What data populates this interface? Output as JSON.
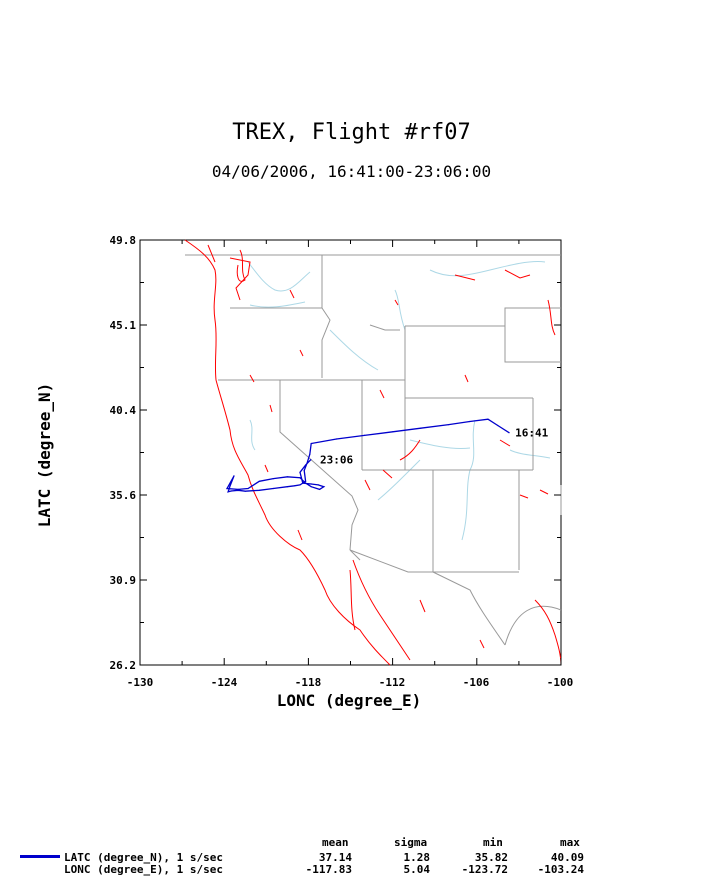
{
  "title": "TREX, Flight #rf07",
  "subtitle": "04/06/2006, 16:41:00-23:06:00",
  "chart_data": {
    "type": "line",
    "xlabel": "LONC (degree_E)",
    "ylabel": "LATC (degree_N)",
    "xlim": [
      -130,
      -100
    ],
    "ylim": [
      26.2,
      49.8
    ],
    "xticks": [
      "-130",
      "-124",
      "-118",
      "-112",
      "-106",
      "-100"
    ],
    "yticks": [
      "49.8",
      "45.1",
      "40.4",
      "35.6",
      "30.9",
      "26.2"
    ],
    "series": [
      {
        "name": "LATC (degree_N), 1 s/sec",
        "color": "#0000cc",
        "x": [
          -103.7,
          -104.5,
          -105.2,
          -106.5,
          -108.0,
          -110.0,
          -112.0,
          -114.0,
          -116.0,
          -117.8,
          -117.9,
          -118.1,
          -118.3,
          -118.2,
          -118.6,
          -119.0,
          -119.5,
          -120.5,
          -121.5,
          -122.5,
          -123.0,
          -123.5,
          -123.72,
          -123.6,
          -123.3,
          -123.8,
          -123.0,
          -122.3,
          -121.5,
          -120.5,
          -119.5,
          -118.6,
          -118.2,
          -117.8,
          -117.2,
          -116.9,
          -117.3,
          -117.8,
          -118.4,
          -118.6,
          -118.2,
          -117.83
        ],
        "y": [
          39.1,
          39.5,
          39.85,
          39.72,
          39.55,
          39.35,
          39.15,
          38.95,
          38.75,
          38.5,
          37.9,
          37.4,
          37.0,
          36.4,
          36.2,
          36.15,
          36.1,
          36.0,
          35.9,
          35.85,
          35.9,
          35.86,
          35.82,
          36.1,
          36.7,
          36.0,
          35.95,
          36.0,
          36.4,
          36.55,
          36.65,
          36.6,
          36.3,
          36.1,
          35.95,
          36.1,
          36.2,
          36.25,
          36.3,
          36.9,
          37.3,
          37.6
        ]
      }
    ],
    "annotations": [
      {
        "text": "16:41",
        "x": -103.7,
        "y": 39.1
      },
      {
        "text": "23:06",
        "x": -117.6,
        "y": 37.6
      }
    ],
    "map_layers": [
      "coastline",
      "state-borders",
      "rivers"
    ],
    "map_colors": {
      "coast": "#ff0000",
      "borders": "#999999",
      "rivers": "#add8e6"
    }
  },
  "stats": {
    "headers": [
      "mean",
      "sigma",
      "min",
      "max"
    ],
    "rows": [
      {
        "label": "LATC (degree_N), 1 s/sec",
        "mean": "37.14",
        "sigma": "1.28",
        "min": "35.82",
        "max": "40.09"
      },
      {
        "label": "LONC (degree_E), 1 s/sec",
        "mean": "-117.83",
        "sigma": "5.04",
        "min": "-123.72",
        "max": "-103.24"
      }
    ]
  }
}
